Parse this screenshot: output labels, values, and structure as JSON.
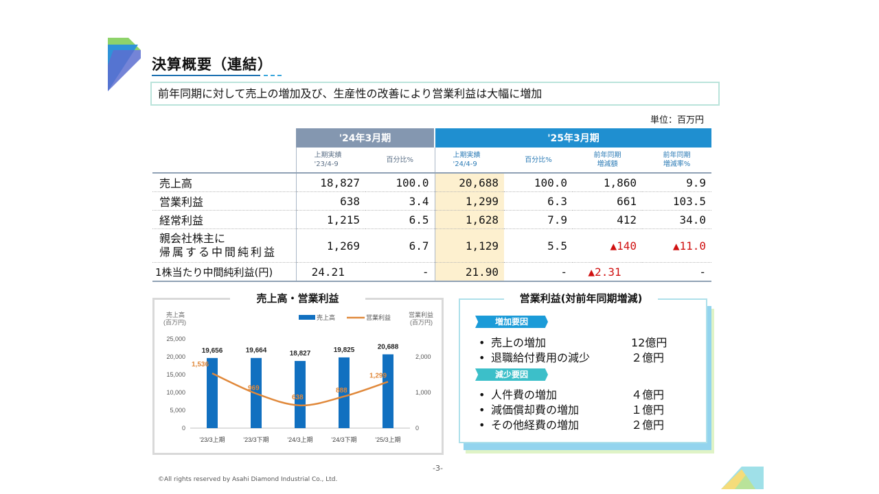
{
  "title": "決算概要（連結）",
  "subtitle": "前年同期に対して売上の増加及び、生産性の改善により営業利益は大幅に増加",
  "unit": "単位：百万円",
  "table": {
    "group_headers": [
      "'24年3月期",
      "'25年3月期"
    ],
    "sub_headers": [
      {
        "line1": "上期実績",
        "line2": "'23/4-9"
      },
      {
        "line1": "百分比%",
        "line2": ""
      },
      {
        "line1": "上期実績",
        "line2": "'24/4-9"
      },
      {
        "line1": "百分比%",
        "line2": ""
      },
      {
        "line1": "前年同期",
        "line2": "増減額"
      },
      {
        "line1": "前年同期",
        "line2": "増減率%"
      }
    ],
    "rows": [
      {
        "label": "売上高",
        "label2": "",
        "values": [
          "18,827",
          "100.0",
          "20,688",
          "100.0",
          "1,860",
          "9.9"
        ]
      },
      {
        "label": "営業利益",
        "label2": "",
        "values": [
          "638",
          "3.4",
          "1,299",
          "6.3",
          "661",
          "103.5"
        ]
      },
      {
        "label": "経常利益",
        "label2": "",
        "values": [
          "1,215",
          "6.5",
          "1,628",
          "7.9",
          "412",
          "34.0"
        ]
      },
      {
        "label": "親会社株主に",
        "label2": "帰属する中間純利益",
        "values": [
          "1,269",
          "6.7",
          "1,129",
          "5.5",
          "▲140",
          "▲11.0"
        ]
      },
      {
        "label": "1株当たり中間純利益(円)",
        "label2": "",
        "values": [
          "24.21",
          "-",
          "21.90",
          "-",
          "▲2.31",
          "-"
        ]
      }
    ]
  },
  "chart_panel": {
    "title": "売上高・営業利益",
    "left_axis_label": [
      "売上高",
      "(百万円)"
    ],
    "right_axis_label": [
      "営業利益",
      "(百万円)"
    ],
    "legend_bar": "売上高",
    "legend_line": "営業利益"
  },
  "chart_data": {
    "type": "bar",
    "title": "売上高・営業利益",
    "categories": [
      "'23/3上期",
      "'23/3下期",
      "'24/3上期",
      "'24/3下期",
      "'25/3上期"
    ],
    "series": [
      {
        "name": "売上高",
        "type": "bar",
        "axis": "left",
        "values": [
          19656,
          19664,
          18827,
          19825,
          20688
        ],
        "labels": [
          "19,656",
          "19,664",
          "18,827",
          "19,825",
          "20,688"
        ]
      },
      {
        "name": "営業利益",
        "type": "line",
        "axis": "right",
        "values": [
          1536,
          969,
          638,
          888,
          1299
        ],
        "labels": [
          "1,536",
          "969",
          "638",
          "888",
          "1,299"
        ]
      }
    ],
    "y_left": {
      "lim": [
        0,
        25000
      ],
      "ticks": [
        0,
        5000,
        10000,
        15000,
        20000,
        25000
      ],
      "tick_labels": [
        "0",
        "5,000",
        "10,000",
        "15,000",
        "20,000",
        "25,000"
      ]
    },
    "y_right": {
      "lim": [
        0,
        2500
      ],
      "ticks": [
        0,
        1000,
        2000
      ],
      "tick_labels": [
        "0",
        "1,000",
        "2,000"
      ]
    },
    "legend": "top-center",
    "grid": false,
    "colors": {
      "bar": "#1170c0",
      "line": "#e0883a"
    }
  },
  "factors": {
    "title": "営業利益(対前年同期増減)",
    "increase_tag": "増加要因",
    "increase_items": [
      {
        "label": "売上の増加",
        "amount": "12億円"
      },
      {
        "label": "退職給付費用の減少",
        "amount": "２億円"
      }
    ],
    "decrease_tag": "減少要因",
    "decrease_items": [
      {
        "label": "人件費の増加",
        "amount": "４億円"
      },
      {
        "label": "減価償却費の増加",
        "amount": "１億円"
      },
      {
        "label": "その他経費の増加",
        "amount": "２億円"
      }
    ]
  },
  "page_number": "-3-",
  "footer": "©All rights reserved by Asahi Diamond Industrial Co., Ltd.",
  "colors": {
    "header_2024": "#8497b0",
    "header_2025": "#1f8fd0",
    "highlight": "#fdf0cf",
    "negative": "#d01010",
    "increase_tag": "#1b9bd8",
    "decrease_tag": "#3cbfc9"
  }
}
